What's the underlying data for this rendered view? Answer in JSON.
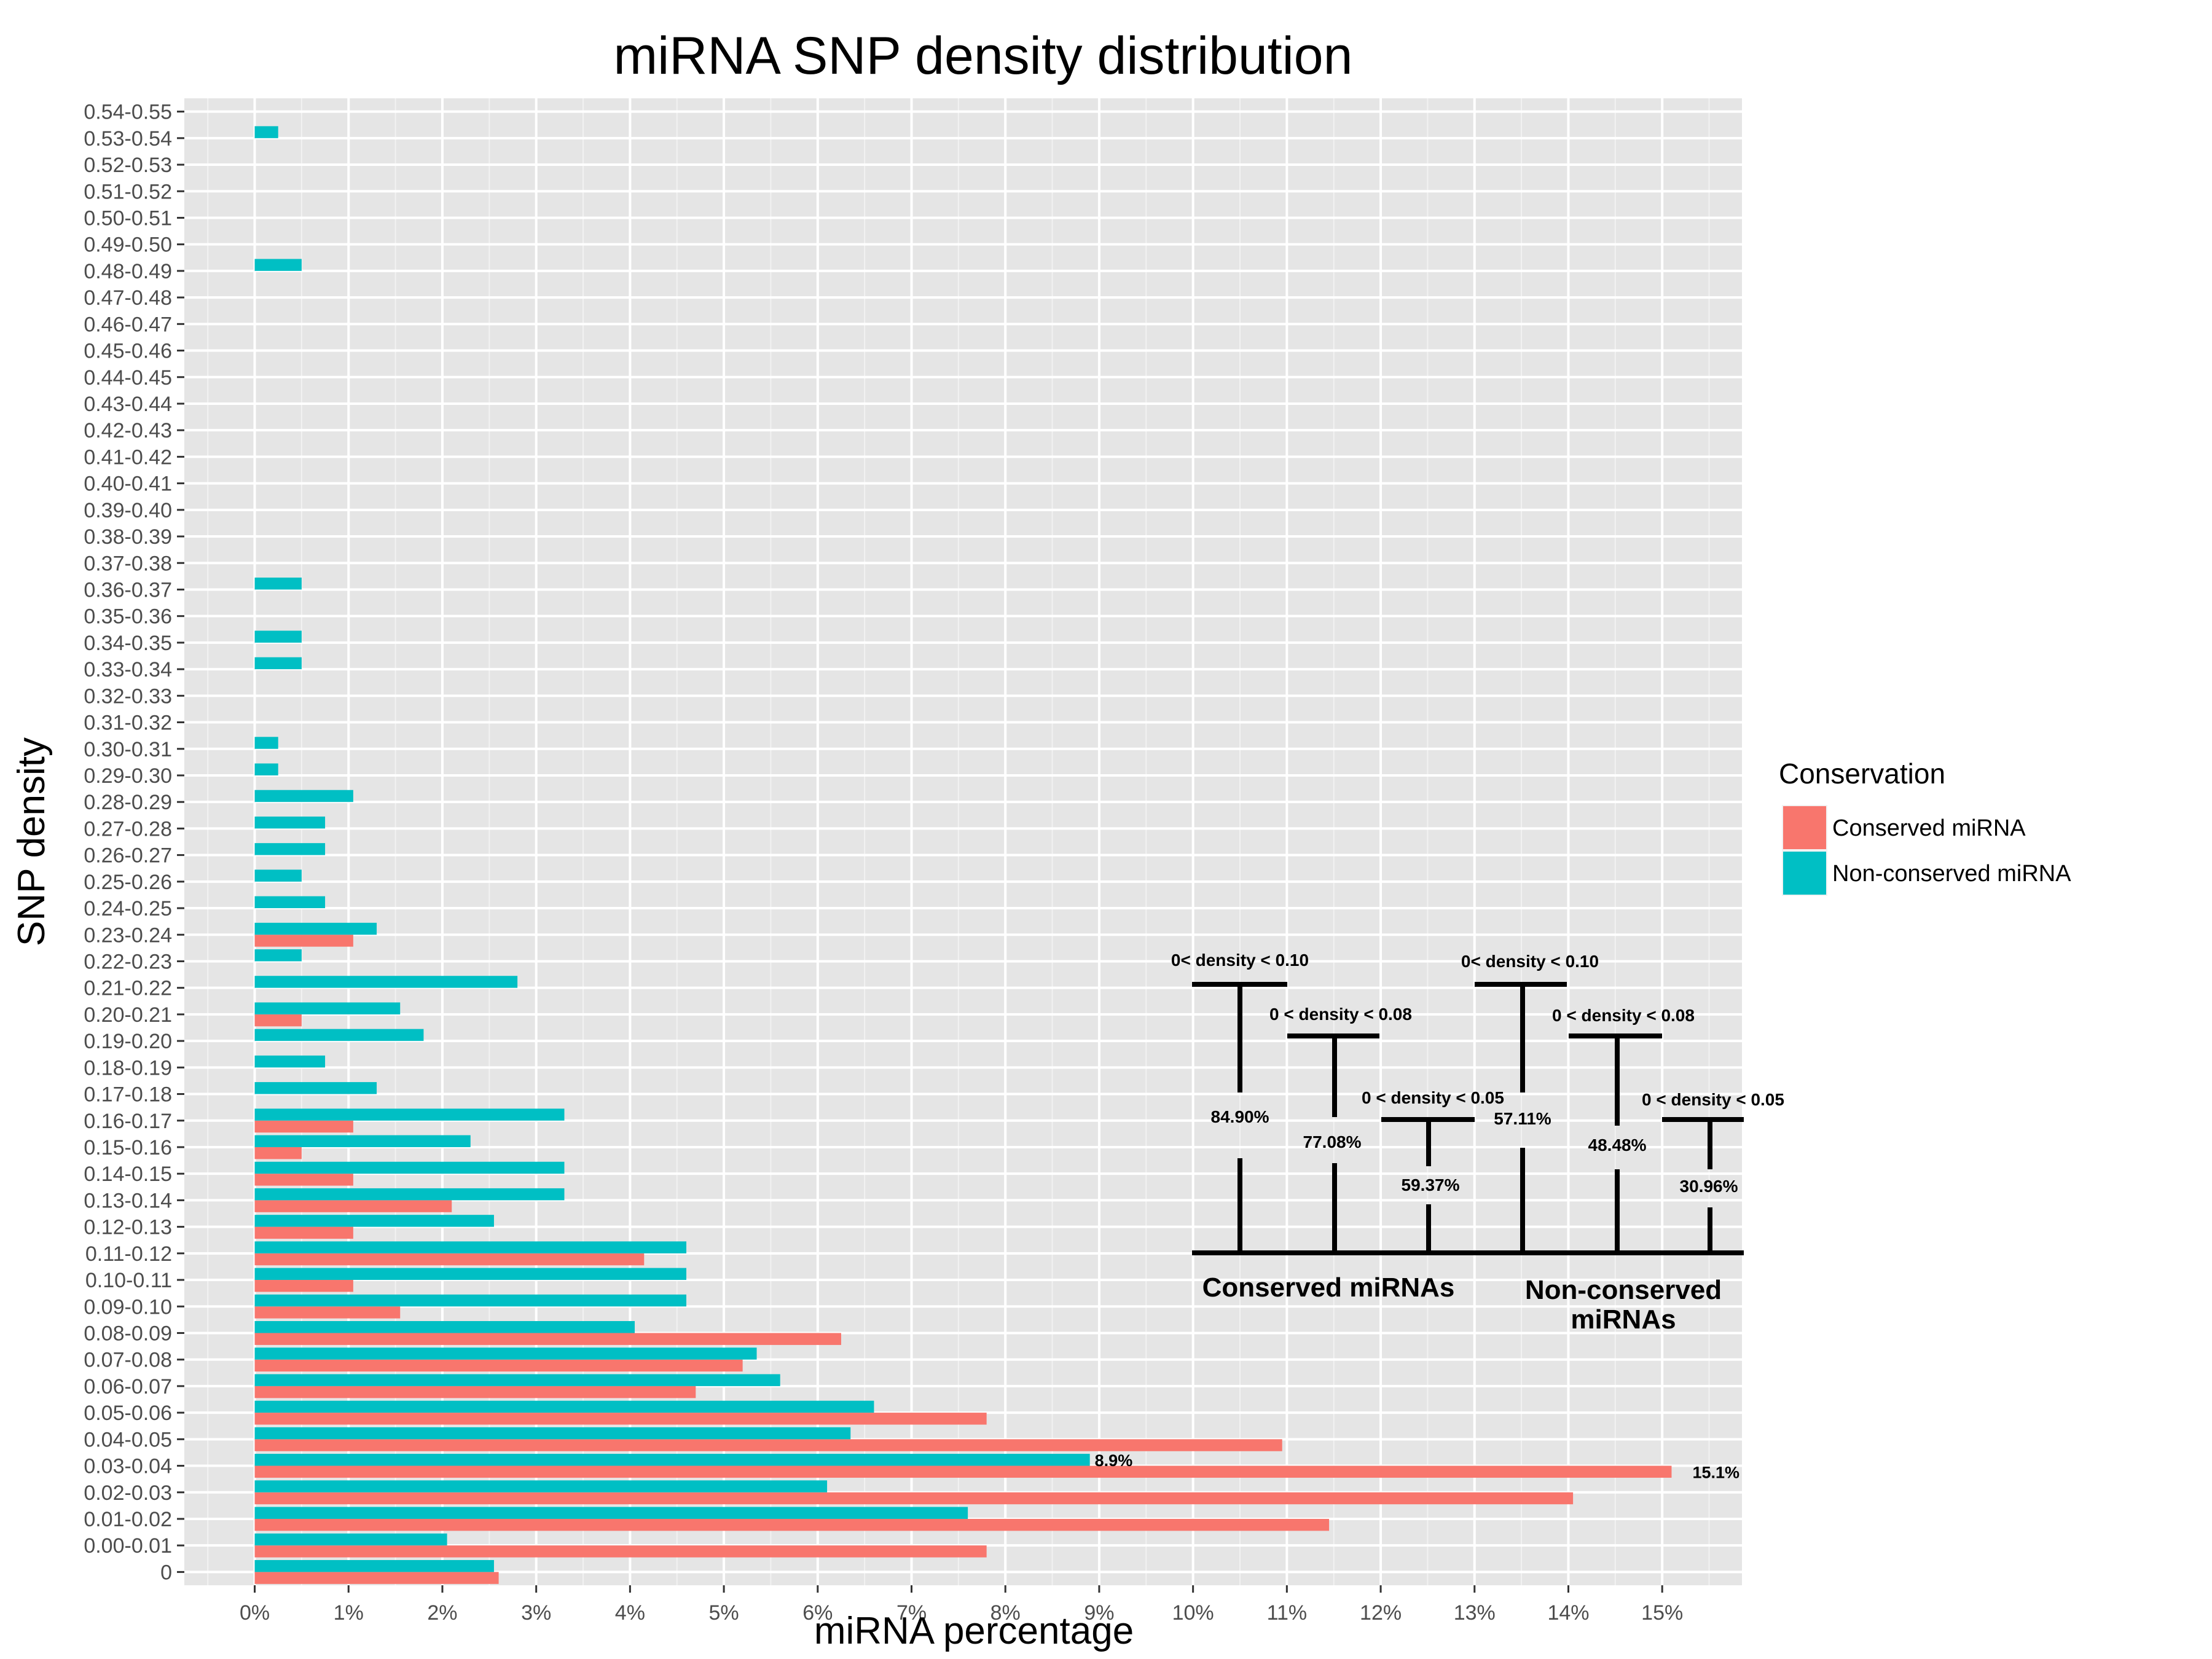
{
  "chart_data": {
    "type": "bar",
    "orientation": "horizontal",
    "title": "miRNA SNP density distribution",
    "xlabel": "miRNA percentage",
    "ylabel": "SNP density",
    "xlim": [
      -0.75,
      15.85
    ],
    "xticks": [
      "0%",
      "1%",
      "2%",
      "3%",
      "4%",
      "5%",
      "6%",
      "7%",
      "8%",
      "9%",
      "10%",
      "11%",
      "12%",
      "13%",
      "14%",
      "15%"
    ],
    "grid": true,
    "legend_position": "right",
    "legend_title": "Conservation",
    "categories": [
      "0",
      "0.00-0.01",
      "0.01-0.02",
      "0.02-0.03",
      "0.03-0.04",
      "0.04-0.05",
      "0.05-0.06",
      "0.06-0.07",
      "0.07-0.08",
      "0.08-0.09",
      "0.09-0.10",
      "0.10-0.11",
      "0.11-0.12",
      "0.12-0.13",
      "0.13-0.14",
      "0.14-0.15",
      "0.15-0.16",
      "0.16-0.17",
      "0.17-0.18",
      "0.18-0.19",
      "0.19-0.20",
      "0.20-0.21",
      "0.21-0.22",
      "0.22-0.23",
      "0.23-0.24",
      "0.24-0.25",
      "0.25-0.26",
      "0.26-0.27",
      "0.27-0.28",
      "0.28-0.29",
      "0.29-0.30",
      "0.30-0.31",
      "0.31-0.32",
      "0.32-0.33",
      "0.33-0.34",
      "0.34-0.35",
      "0.35-0.36",
      "0.36-0.37",
      "0.37-0.38",
      "0.38-0.39",
      "0.39-0.40",
      "0.40-0.41",
      "0.41-0.42",
      "0.42-0.43",
      "0.43-0.44",
      "0.44-0.45",
      "0.45-0.46",
      "0.46-0.47",
      "0.47-0.48",
      "0.48-0.49",
      "0.49-0.50",
      "0.50-0.51",
      "0.51-0.52",
      "0.52-0.53",
      "0.53-0.54",
      "0.54-0.55"
    ],
    "series": [
      {
        "name": "Conserved miRNA",
        "color": "#F8766D",
        "values": [
          2.6,
          7.8,
          11.45,
          14.05,
          15.1,
          10.95,
          7.8,
          4.7,
          5.2,
          6.25,
          1.55,
          1.05,
          4.15,
          1.05,
          2.1,
          1.05,
          0.5,
          1.05,
          0,
          0,
          0,
          0.5,
          0,
          0,
          1.05,
          0,
          0,
          0,
          0,
          0,
          0,
          0,
          0,
          0,
          0,
          0,
          0,
          0,
          0,
          0,
          0,
          0,
          0,
          0,
          0,
          0,
          0,
          0,
          0,
          0,
          0,
          0,
          0,
          0,
          0,
          0
        ]
      },
      {
        "name": "Non-conserved miRNA",
        "color": "#00BFC4",
        "values": [
          2.55,
          2.05,
          7.6,
          6.1,
          8.9,
          6.35,
          6.6,
          5.6,
          5.35,
          4.05,
          4.6,
          4.6,
          4.6,
          2.55,
          3.3,
          3.3,
          2.3,
          3.3,
          1.3,
          0.75,
          1.8,
          1.55,
          2.8,
          0.5,
          1.3,
          0.75,
          0.5,
          0.75,
          0.75,
          1.05,
          0.25,
          0.25,
          0,
          0,
          0.5,
          0.5,
          0,
          0.5,
          0,
          0,
          0,
          0,
          0,
          0,
          0,
          0,
          0,
          0,
          0,
          0.5,
          0,
          0,
          0,
          0,
          0.25,
          0
        ]
      }
    ],
    "data_labels": [
      {
        "text": "8.9%",
        "series": "Non-conserved miRNA",
        "category": "0.03-0.04"
      },
      {
        "text": "15.1%",
        "series": "Conserved miRNA",
        "category": "0.03-0.04"
      }
    ],
    "annotations": {
      "conserved": {
        "label": "Conserved miRNAs",
        "brackets": [
          {
            "range": "0< density < 0.10",
            "percent": "84.90%"
          },
          {
            "range": "0 < density < 0.08",
            "percent": "77.08%"
          },
          {
            "range": "0 < density < 0.05",
            "percent": "59.37%"
          }
        ]
      },
      "nonconserved": {
        "label_line1": "Non-conserved",
        "label_line2": "miRNAs",
        "brackets": [
          {
            "range": "0< density < 0.10",
            "percent": "57.11%"
          },
          {
            "range": "0 < density < 0.08",
            "percent": "48.48%"
          },
          {
            "range": "0 < density < 0.05",
            "percent": "30.96%"
          }
        ]
      }
    }
  }
}
